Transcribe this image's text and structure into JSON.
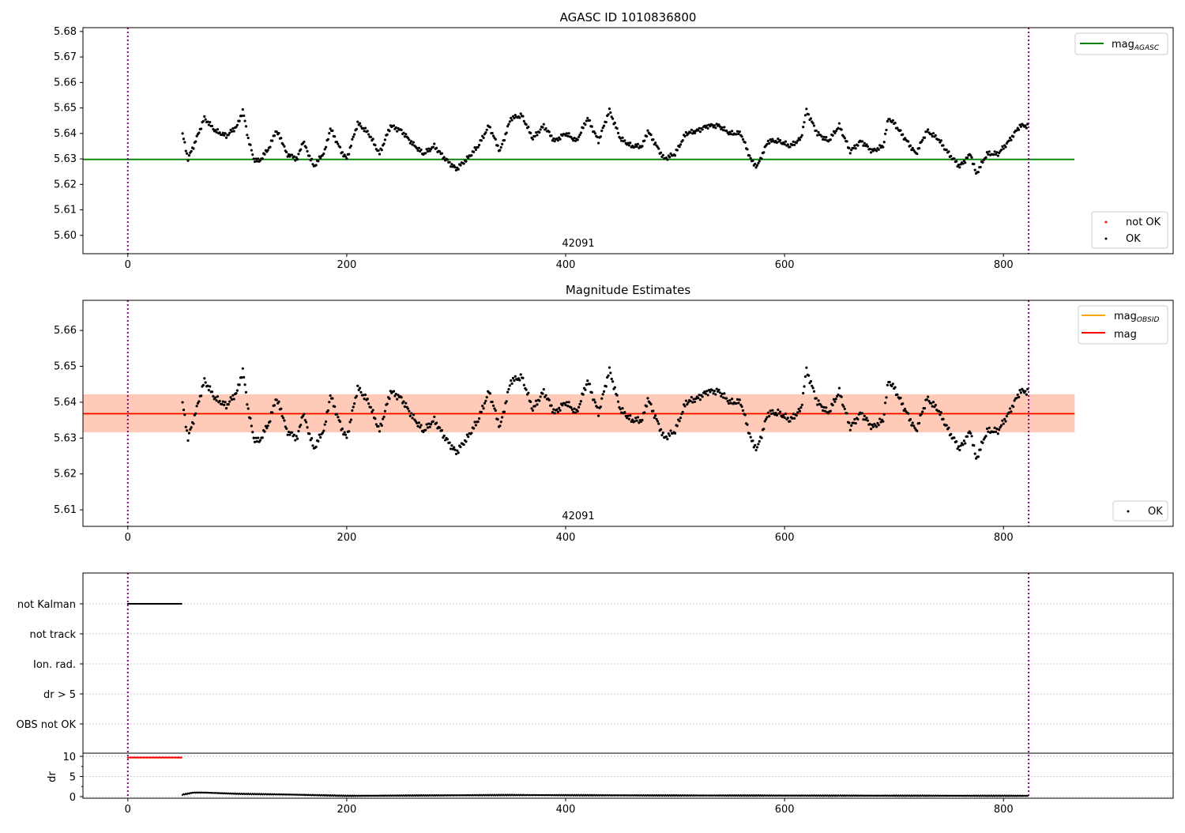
{
  "chart_data": [
    {
      "type": "scatter",
      "title": "AGASC ID 1010836800",
      "annotation": "42091",
      "xlim": [
        -41,
        955
      ],
      "ylim": [
        5.5928,
        5.6815
      ],
      "xticks": [
        0,
        200,
        400,
        600,
        800
      ],
      "yticks": [
        5.6,
        5.61,
        5.62,
        5.63,
        5.64,
        5.65,
        5.66,
        5.67,
        5.68
      ],
      "mag_agasc": 5.6298,
      "legend_lines": [
        {
          "label": "mag",
          "sub": "AGASC",
          "color": "#008000"
        }
      ],
      "legend_points": [
        {
          "label": "not OK",
          "color": "#ff0000"
        },
        {
          "label": "OK",
          "color": "#000000"
        }
      ],
      "vlines": [
        0,
        823
      ],
      "series_sampled": {
        "frames": [
          50,
          55,
          60,
          70,
          80,
          90,
          100,
          105,
          110,
          115,
          120,
          130,
          135,
          140,
          145,
          155,
          160,
          170,
          180,
          185,
          195,
          200,
          210,
          220,
          230,
          240,
          250,
          260,
          270,
          280,
          290,
          300,
          310,
          320,
          330,
          340,
          350,
          360,
          370,
          380,
          390,
          400,
          410,
          420,
          430,
          440,
          450,
          460,
          470,
          475,
          490,
          500,
          510,
          520,
          530,
          540,
          550,
          560,
          570,
          575,
          585,
          595,
          605,
          615,
          620,
          630,
          640,
          650,
          660,
          670,
          680,
          690,
          695,
          700,
          710,
          720,
          730,
          740,
          750,
          760,
          770,
          775,
          785,
          795,
          805,
          815,
          822
        ],
        "mag": [
          5.6397,
          5.63,
          5.635,
          5.646,
          5.641,
          5.639,
          5.643,
          5.649,
          5.638,
          5.63,
          5.629,
          5.635,
          5.641,
          5.638,
          5.632,
          5.63,
          5.637,
          5.627,
          5.633,
          5.642,
          5.633,
          5.63,
          5.644,
          5.64,
          5.632,
          5.643,
          5.641,
          5.636,
          5.632,
          5.635,
          5.63,
          5.626,
          5.63,
          5.635,
          5.643,
          5.633,
          5.646,
          5.647,
          5.638,
          5.643,
          5.637,
          5.64,
          5.637,
          5.646,
          5.637,
          5.649,
          5.638,
          5.635,
          5.635,
          5.641,
          5.63,
          5.632,
          5.64,
          5.641,
          5.643,
          5.643,
          5.64,
          5.64,
          5.629,
          5.627,
          5.637,
          5.637,
          5.635,
          5.638,
          5.649,
          5.64,
          5.637,
          5.643,
          5.633,
          5.637,
          5.633,
          5.635,
          5.646,
          5.644,
          5.638,
          5.632,
          5.641,
          5.638,
          5.632,
          5.627,
          5.632,
          5.624,
          5.632,
          5.632,
          5.637,
          5.643,
          5.643
        ]
      }
    },
    {
      "type": "scatter",
      "title": "Magnitude Estimates",
      "annotation": "42091",
      "xlim": [
        -41,
        955
      ],
      "ylim": [
        5.6054,
        5.6684
      ],
      "xticks": [
        0,
        200,
        400,
        600,
        800
      ],
      "yticks": [
        5.61,
        5.62,
        5.63,
        5.64,
        5.65,
        5.66
      ],
      "mag_obsid": 5.6368,
      "mag": 5.6368,
      "band": [
        5.6316,
        5.6422
      ],
      "line_end_frame": 865,
      "legend_lines": [
        {
          "label": "mag",
          "sub": "OBSID",
          "color": "#ffa500"
        },
        {
          "label": "mag",
          "sub": "",
          "color": "#ff0000"
        }
      ],
      "legend_points": [
        {
          "label": "OK",
          "color": "#000000"
        }
      ],
      "vlines": [
        0,
        823
      ]
    },
    {
      "type": "scatter",
      "title": "",
      "xlim": [
        -41,
        955
      ],
      "xticks": [
        0,
        200,
        400,
        600,
        800
      ],
      "flag_rows": [
        "not Kalman",
        "not track",
        "Ion. rad.",
        "dr > 5",
        "OBS not OK"
      ],
      "flags": {
        "not Kalman": [
          0,
          49
        ]
      },
      "dr_label": "dr",
      "dr_yticks": [
        0,
        5,
        10
      ],
      "dr_sampled": {
        "frames": [
          0,
          49,
          50,
          60,
          70,
          100,
          150,
          200,
          350,
          480,
          822
        ],
        "dr": [
          9.7,
          9.7,
          0.5,
          1.0,
          1.0,
          0.7,
          0.5,
          0.2,
          0.4,
          0.3,
          0.2
        ]
      },
      "vlines": [
        0,
        823
      ]
    }
  ]
}
